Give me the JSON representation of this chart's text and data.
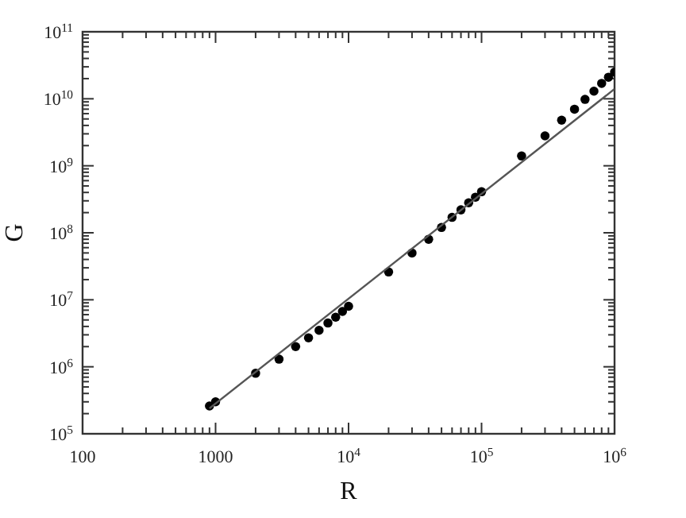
{
  "chart_data": {
    "type": "scatter",
    "xlabel": "R",
    "ylabel": "G",
    "log": "xy",
    "grid": false,
    "xlim": [
      100,
      1000000
    ],
    "ylim": [
      100000,
      100000000000
    ],
    "xticks": [
      100,
      {
        "value": 200,
        "label": null
      },
      {
        "value": 300,
        "label": null
      },
      {
        "value": 400,
        "label": null
      },
      {
        "value": 500,
        "label": null
      },
      {
        "value": 600,
        "label": null
      },
      {
        "value": 700,
        "label": null
      },
      {
        "value": 800,
        "label": null
      },
      {
        "value": 900,
        "label": null
      },
      1000,
      {
        "value": 2000,
        "label": null
      },
      {
        "value": 3000,
        "label": null
      },
      {
        "value": 4000,
        "label": null
      },
      {
        "value": 5000,
        "label": null
      },
      {
        "value": 6000,
        "label": null
      },
      {
        "value": 7000,
        "label": null
      },
      {
        "value": 8000,
        "label": null
      },
      {
        "value": 9000,
        "label": null
      },
      {
        "value": 10000,
        "label": "10$^{4}$"
      },
      {
        "value": 20000,
        "label": null
      },
      {
        "value": 30000,
        "label": null
      },
      {
        "value": 40000,
        "label": null
      },
      {
        "value": 50000,
        "label": null
      },
      {
        "value": 60000,
        "label": null
      },
      {
        "value": 70000,
        "label": null
      },
      {
        "value": 80000,
        "label": null
      },
      {
        "value": 90000,
        "label": null
      },
      {
        "value": 100000,
        "label": "10$^{5}$"
      },
      {
        "value": 200000,
        "label": null
      },
      {
        "value": 300000,
        "label": null
      },
      {
        "value": 400000,
        "label": null
      },
      {
        "value": 500000,
        "label": null
      },
      {
        "value": 600000,
        "label": null
      },
      {
        "value": 700000,
        "label": null
      },
      {
        "value": 800000,
        "label": null
      },
      {
        "value": 900000,
        "label": null
      },
      {
        "value": 1000000,
        "label": "10$^{6}$"
      }
    ],
    "yticks": [
      {
        "value": 100000,
        "label": "10$^{5}$"
      },
      {
        "value": 200000,
        "label": null
      },
      {
        "value": 300000,
        "label": null
      },
      {
        "value": 400000,
        "label": null
      },
      {
        "value": 500000,
        "label": null
      },
      {
        "value": 600000,
        "label": null
      },
      {
        "value": 700000,
        "label": null
      },
      {
        "value": 800000,
        "label": null
      },
      {
        "value": 900000,
        "label": null
      },
      {
        "value": 1000000,
        "label": "10$^{6}$"
      },
      {
        "value": 2000000,
        "label": null
      },
      {
        "value": 3000000,
        "label": null
      },
      {
        "value": 4000000,
        "label": null
      },
      {
        "value": 5000000,
        "label": null
      },
      {
        "value": 6000000,
        "label": null
      },
      {
        "value": 7000000,
        "label": null
      },
      {
        "value": 8000000,
        "label": null
      },
      {
        "value": 9000000,
        "label": null
      },
      {
        "value": 10000000,
        "label": "10$^{7}$"
      },
      {
        "value": 20000000,
        "label": null
      },
      {
        "value": 30000000,
        "label": null
      },
      {
        "value": 40000000,
        "label": null
      },
      {
        "value": 50000000,
        "label": null
      },
      {
        "value": 60000000,
        "label": null
      },
      {
        "value": 70000000,
        "label": null
      },
      {
        "value": 80000000,
        "label": null
      },
      {
        "value": 90000000,
        "label": null
      },
      {
        "value": 100000000,
        "label": "10$^{8}$"
      },
      {
        "value": 200000000,
        "label": null
      },
      {
        "value": 300000000,
        "label": null
      },
      {
        "value": 400000000,
        "label": null
      },
      {
        "value": 500000000,
        "label": null
      },
      {
        "value": 600000000,
        "label": null
      },
      {
        "value": 700000000,
        "label": null
      },
      {
        "value": 800000000,
        "label": null
      },
      {
        "value": 900000000,
        "label": null
      },
      {
        "value": 1000000000,
        "label": "10$^{9}$"
      },
      {
        "value": 2000000000,
        "label": null
      },
      {
        "value": 3000000000,
        "label": null
      },
      {
        "value": 4000000000,
        "label": null
      },
      {
        "value": 5000000000,
        "label": null
      },
      {
        "value": 6000000000,
        "label": null
      },
      {
        "value": 7000000000,
        "label": null
      },
      {
        "value": 8000000000,
        "label": null
      },
      {
        "value": 9000000000,
        "label": null
      },
      {
        "value": 10000000000,
        "label": "10$^{10}$"
      },
      {
        "value": 20000000000,
        "label": null
      },
      {
        "value": 30000000000,
        "label": null
      },
      {
        "value": 40000000000,
        "label": null
      },
      {
        "value": 50000000000,
        "label": null
      },
      {
        "value": 60000000000,
        "label": null
      },
      {
        "value": 70000000000,
        "label": null
      },
      {
        "value": 80000000000,
        "label": null
      },
      {
        "value": 90000000000,
        "label": null
      },
      {
        "value": 100000000000,
        "label": "10$^{11}$"
      }
    ],
    "series": [
      {
        "marker": "circle",
        "color": "#000000",
        "x": [
          900,
          1000,
          2000,
          3000,
          4000,
          5000,
          6000,
          7000,
          8000,
          9000,
          10000,
          20000,
          30000,
          40000,
          50000,
          60000,
          70000,
          80000,
          90000,
          100000,
          200000,
          300000,
          400000,
          500000,
          600000,
          700000,
          800000,
          900000,
          1000000
        ],
        "values": [
          260000,
          300000,
          800000,
          1300000,
          2000000,
          2700000,
          3500000,
          4500000,
          5500000,
          6700000,
          8000000,
          26000000,
          50000000,
          80000000,
          120000000,
          170000000,
          220000000,
          280000000,
          340000000,
          410000000,
          1400000000,
          2800000000,
          4800000000,
          7000000000,
          9800000000,
          13000000000,
          17000000000,
          21000000000,
          25000000000
        ]
      },
      {
        "type": "line",
        "marker": "none",
        "color": "#555555",
        "x": [
          900,
          1000000
        ],
        "values": [
          240000,
          14000000000
        ]
      }
    ]
  }
}
